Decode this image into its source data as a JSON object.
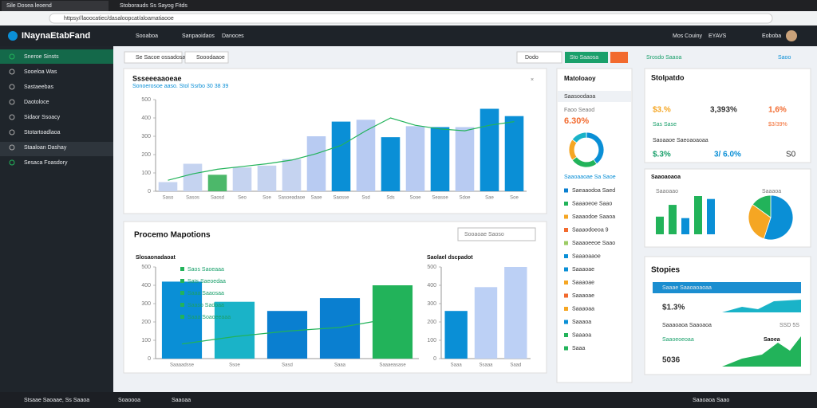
{
  "browser": {
    "tabs": [
      "Sile Dosea leoend",
      "Stoborauds Ss Sayog Fitds"
    ],
    "url": "httpsy//laoocatiec/dasaloopcat/aloamatiaooe"
  },
  "header": {
    "logo": "INaynaEtabFand",
    "nav": [
      "Sooaboa",
      "Sanpaoidaos",
      "Danoces"
    ],
    "right": [
      "Mos Couiny",
      "EYAVS",
      "Eoboba"
    ]
  },
  "sidebar": [
    "Sneroe Sinsts",
    "Sooeloa Was",
    "Sastaeebas",
    "Daotoloce",
    "Sidaor Ssoacy",
    "Stotartoadlaoa",
    "Staaloan Dashay",
    "Sesaca Foasdory"
  ],
  "toolbar": {
    "left": [
      "Se Sacoe ossadosa",
      "Sooodaaoe"
    ],
    "right": [
      "Dodo",
      "Sto Saaosa"
    ],
    "far": [
      "Srosdo Saaoa",
      "Saoo"
    ]
  },
  "main_chart": {
    "type": "bar",
    "title": "Ssseeeaaoeae",
    "subtitle": "Sonoerosoe aaso. Stol Ssrbo 30 38 39",
    "categories": [
      "Saso",
      "Sasos",
      "Saosd",
      "Seo",
      "Soe",
      "Sasoeadaoe",
      "Saoe",
      "Saosse",
      "Ssd",
      "Sds",
      "Sooe",
      "Seasoe",
      "Sdoe",
      "Sae",
      "Soe"
    ],
    "values": [
      50,
      150,
      90,
      130,
      140,
      175,
      300,
      380,
      390,
      295,
      355,
      350,
      350,
      450,
      410
    ],
    "colors": [
      "#c5d3f0",
      "#c5d3f0",
      "#4cb86a",
      "#c5d3f0",
      "#c5d3f0",
      "#c5d3f0",
      "#b8cbf2",
      "#0a8fd6",
      "#b8cbf2",
      "#0a8fd6",
      "#b8cbf2",
      "#0a8fd6",
      "#b8cbf2",
      "#0a8fd6",
      "#0a8fd6"
    ],
    "line": [
      60,
      95,
      120,
      135,
      150,
      170,
      205,
      250,
      330,
      400,
      360,
      340,
      330,
      360,
      380
    ],
    "ylim": [
      0,
      500
    ],
    "yticks": [
      0,
      100,
      200,
      300,
      400,
      500
    ]
  },
  "proc": {
    "title": "Procemo Mapotions",
    "search": "Sooaoae Saoso",
    "left": {
      "type": "bar",
      "title": "Slosaonadaoat",
      "categories": [
        "Saaaadsse",
        "Ssoe",
        "Sasd",
        "Saaa",
        "Saaaeasase"
      ],
      "values": [
        420,
        310,
        260,
        330,
        400
      ],
      "colors": [
        "#0a8fd6",
        "#1ab3c8",
        "#0a7fd0",
        "#0a7fd0",
        "#22b35a"
      ],
      "line": [
        80,
        120,
        150,
        170,
        220
      ],
      "ylim": [
        0,
        500
      ],
      "yticks": [
        0,
        100,
        200,
        300,
        400,
        500
      ],
      "legend": [
        "Saos Saoeaaa",
        "Sats Saeoedaa",
        "Saaa Saaosaa",
        "Saaso Sadoaa",
        "Saaa Soaoeeaaa"
      ]
    },
    "right": {
      "type": "bar",
      "title": "Saolael dscpadot",
      "categories": [
        "Saaa",
        "Ssaaa",
        "Saad"
      ],
      "values": [
        260,
        390,
        500
      ],
      "colors": [
        "#0a8fd6",
        "#bcd0f5",
        "#bcd0f5"
      ],
      "ylim": [
        0,
        500
      ],
      "yticks": [
        0,
        100,
        200,
        300,
        400,
        500
      ]
    }
  },
  "panel": {
    "title": "Matoloaoy",
    "head": "Saasoodaoa",
    "sub": "Faoo Seaod",
    "big": "6.30%",
    "donut": [
      40,
      25,
      20,
      15
    ],
    "donut_colors": [
      "#0a8fd6",
      "#22b35a",
      "#f5a623",
      "#1ab3c8"
    ],
    "donut_label": "Saaoaaoae Sa Saoe",
    "items": [
      "Saeaaodoa Saed",
      "Saaaoeoe Saao",
      "Saaaodoe Saaoa",
      "Saaaodoeoa 9",
      "Saaaoeeoe Saao",
      "Saaaoaaoe",
      "Saaaoae",
      "Saaaoae",
      "Saaaoae",
      "Saaaoaa",
      "Saaaoa",
      "Saaaoa",
      "Saaa"
    ]
  },
  "right": {
    "stats": {
      "title": "Stolpatdo",
      "row1": [
        "$3.%",
        "3,393%",
        "1,6%"
      ],
      "row2": [
        "Sas Sase",
        "$3/39%"
      ],
      "label": "Saoaaoe Saeoaoaoaa",
      "row3": [
        "$.3%",
        "3/ 6.0%",
        "S0"
      ]
    },
    "mini": {
      "title": "Saaoaoaoa",
      "left": "Saaoaao",
      "right": "Saaaoa",
      "values": [
        60,
        100,
        55,
        130,
        120
      ],
      "colors": [
        "#22b35a",
        "#22b35a",
        "#0a8fd6",
        "#22b35a",
        "#0a8fd6"
      ],
      "pie": [
        55,
        30,
        15
      ],
      "pie_colors": [
        "#0a8fd6",
        "#f5a623",
        "#22b35a"
      ]
    },
    "slopes": {
      "title": "Stopies",
      "rows": [
        "Saaae Saaoaoaoaa",
        "Saaaoaoa Saaoaoa",
        "Saaoeoeoaa"
      ],
      "big": [
        "$1.3%",
        "5036"
      ],
      "notes": [
        "SSD 5S",
        "Saoea"
      ]
    }
  },
  "taskbar": [
    "Stsaae Saoaae, Ss Saaoa",
    "Soaoooa",
    "Saaoaa",
    "Saaoaoa Saao"
  ]
}
